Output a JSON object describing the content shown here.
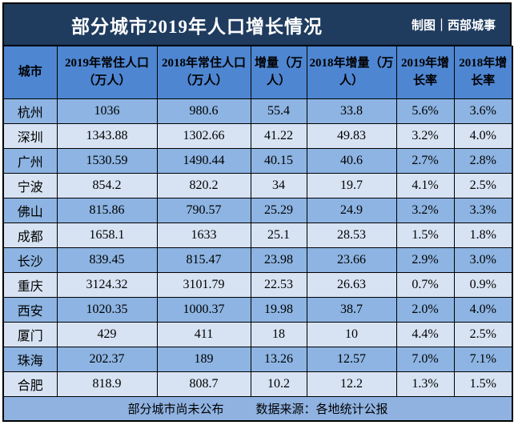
{
  "header": {
    "title": "部分城市2019年人口增长情况",
    "credit": "制图｜西部城事"
  },
  "chart_data": {
    "type": "table",
    "title": "部分城市2019年人口增长情况",
    "columns": [
      "城市",
      "2019年常住人口（万人）",
      "2018年常住人口（万人）",
      "增量（万人）",
      "2018年增量（万人）",
      "2019年增长率",
      "2018年增长率"
    ],
    "rows": [
      [
        "杭州",
        "1036",
        "980.6",
        "55.4",
        "33.8",
        "5.6%",
        "3.6%"
      ],
      [
        "深圳",
        "1343.88",
        "1302.66",
        "41.22",
        "49.83",
        "3.2%",
        "4.0%"
      ],
      [
        "广州",
        "1530.59",
        "1490.44",
        "40.15",
        "40.6",
        "2.7%",
        "2.8%"
      ],
      [
        "宁波",
        "854.2",
        "820.2",
        "34",
        "19.7",
        "4.1%",
        "2.5%"
      ],
      [
        "佛山",
        "815.86",
        "790.57",
        "25.29",
        "24.9",
        "3.2%",
        "3.3%"
      ],
      [
        "成都",
        "1658.1",
        "1633",
        "25.1",
        "28.53",
        "1.5%",
        "1.8%"
      ],
      [
        "长沙",
        "839.45",
        "815.47",
        "23.98",
        "23.66",
        "2.9%",
        "3.0%"
      ],
      [
        "重庆",
        "3124.32",
        "3101.79",
        "22.53",
        "26.63",
        "0.7%",
        "0.9%"
      ],
      [
        "西安",
        "1020.35",
        "1000.37",
        "19.98",
        "38.7",
        "2.0%",
        "4.0%"
      ],
      [
        "厦门",
        "429",
        "411",
        "18",
        "10",
        "4.4%",
        "2.5%"
      ],
      [
        "珠海",
        "202.37",
        "189",
        "13.26",
        "12.57",
        "7.0%",
        "7.1%"
      ],
      [
        "合肥",
        "818.9",
        "808.7",
        "10.2",
        "12.2",
        "1.3%",
        "1.5%"
      ]
    ]
  },
  "footer": {
    "note": "部分城市尚未公布",
    "source": "数据来源：各地统计公报"
  },
  "colors": {
    "title_bar_bg": "#1F3C5F",
    "header_row_bg": "#4E86D2",
    "row_medium_bg": "#8DB4E2",
    "row_light_bg": "#D7E3F3",
    "footer_bg": "#8FB2E1",
    "border_color": "#000000",
    "title_text": "#FFFFFF",
    "body_text": "#000000"
  }
}
